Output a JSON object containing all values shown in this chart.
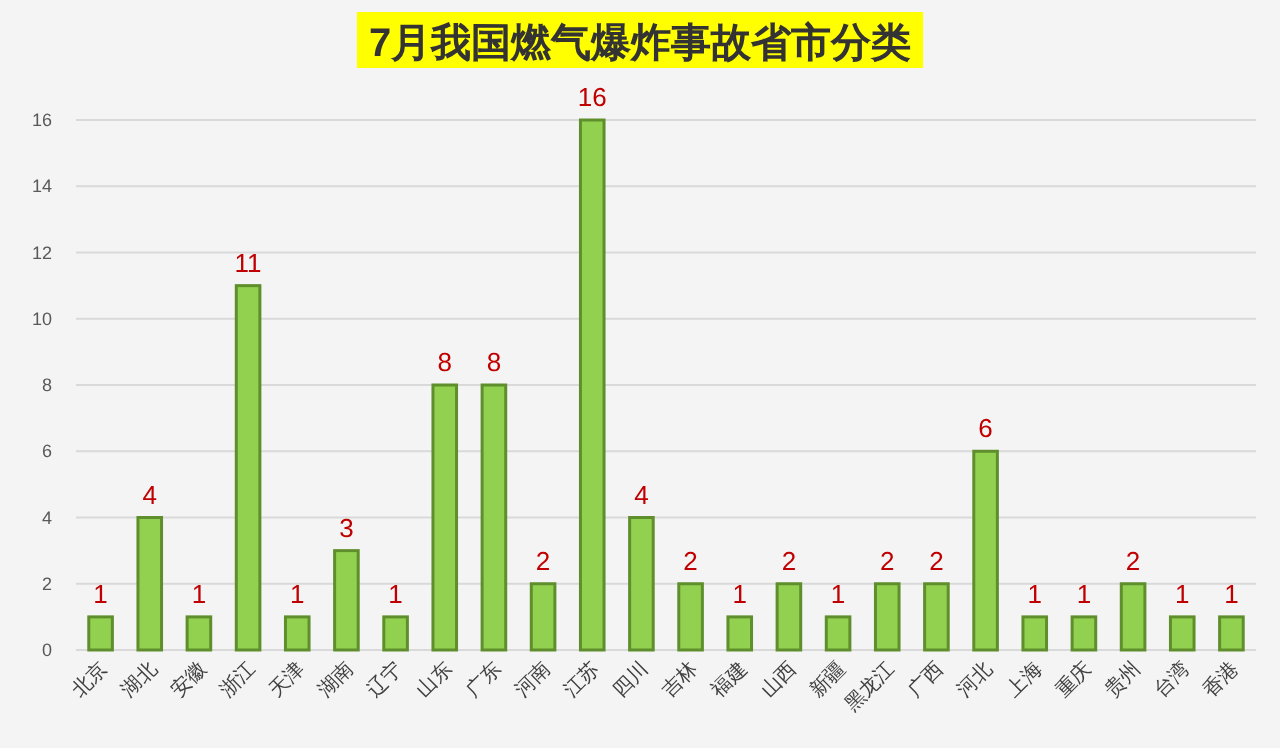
{
  "chart_data": {
    "type": "bar",
    "title": "7月我国燃气爆炸事故省市分类",
    "categories": [
      "北京",
      "湖北",
      "安徽",
      "浙江",
      "天津",
      "湖南",
      "辽宁",
      "山东",
      "广东",
      "河南",
      "江苏",
      "四川",
      "吉林",
      "福建",
      "山西",
      "新疆",
      "黑龙江",
      "广西",
      "河北",
      "上海",
      "重庆",
      "贵州",
      "台湾",
      "香港"
    ],
    "values": [
      1,
      4,
      1,
      11,
      1,
      3,
      1,
      8,
      8,
      2,
      16,
      4,
      2,
      1,
      2,
      1,
      2,
      2,
      6,
      1,
      1,
      2,
      1,
      1
    ],
    "color": "#92d050",
    "ylim": [
      0,
      16
    ],
    "yticks": [
      0,
      2,
      4,
      6,
      8,
      10,
      12,
      14,
      16
    ],
    "grid": "y",
    "data_labels": true
  }
}
